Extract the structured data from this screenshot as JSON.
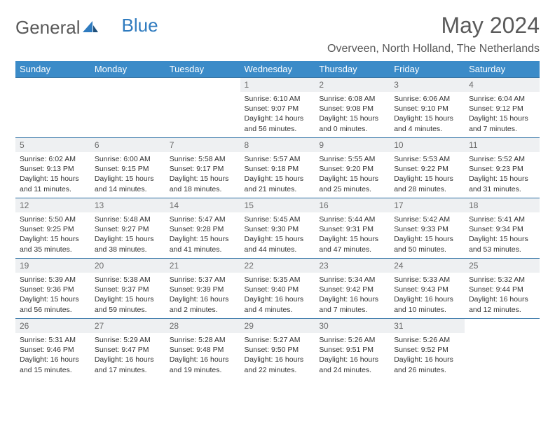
{
  "logo": {
    "text1": "General",
    "text2": "Blue"
  },
  "title": "May 2024",
  "location": "Overveen, North Holland, The Netherlands",
  "colors": {
    "header_bg": "#3b8bc8",
    "header_text": "#ffffff",
    "daynum_bg": "#eef0f2",
    "row_border": "#2d6fa3",
    "text": "#333333",
    "muted": "#5a5a5a",
    "logo_blue": "#2f7bbf"
  },
  "weekdays": [
    "Sunday",
    "Monday",
    "Tuesday",
    "Wednesday",
    "Thursday",
    "Friday",
    "Saturday"
  ],
  "weeks": [
    [
      null,
      null,
      null,
      {
        "n": "1",
        "sr": "Sunrise: 6:10 AM",
        "ss": "Sunset: 9:07 PM",
        "dl": "Daylight: 14 hours and 56 minutes."
      },
      {
        "n": "2",
        "sr": "Sunrise: 6:08 AM",
        "ss": "Sunset: 9:08 PM",
        "dl": "Daylight: 15 hours and 0 minutes."
      },
      {
        "n": "3",
        "sr": "Sunrise: 6:06 AM",
        "ss": "Sunset: 9:10 PM",
        "dl": "Daylight: 15 hours and 4 minutes."
      },
      {
        "n": "4",
        "sr": "Sunrise: 6:04 AM",
        "ss": "Sunset: 9:12 PM",
        "dl": "Daylight: 15 hours and 7 minutes."
      }
    ],
    [
      {
        "n": "5",
        "sr": "Sunrise: 6:02 AM",
        "ss": "Sunset: 9:13 PM",
        "dl": "Daylight: 15 hours and 11 minutes."
      },
      {
        "n": "6",
        "sr": "Sunrise: 6:00 AM",
        "ss": "Sunset: 9:15 PM",
        "dl": "Daylight: 15 hours and 14 minutes."
      },
      {
        "n": "7",
        "sr": "Sunrise: 5:58 AM",
        "ss": "Sunset: 9:17 PM",
        "dl": "Daylight: 15 hours and 18 minutes."
      },
      {
        "n": "8",
        "sr": "Sunrise: 5:57 AM",
        "ss": "Sunset: 9:18 PM",
        "dl": "Daylight: 15 hours and 21 minutes."
      },
      {
        "n": "9",
        "sr": "Sunrise: 5:55 AM",
        "ss": "Sunset: 9:20 PM",
        "dl": "Daylight: 15 hours and 25 minutes."
      },
      {
        "n": "10",
        "sr": "Sunrise: 5:53 AM",
        "ss": "Sunset: 9:22 PM",
        "dl": "Daylight: 15 hours and 28 minutes."
      },
      {
        "n": "11",
        "sr": "Sunrise: 5:52 AM",
        "ss": "Sunset: 9:23 PM",
        "dl": "Daylight: 15 hours and 31 minutes."
      }
    ],
    [
      {
        "n": "12",
        "sr": "Sunrise: 5:50 AM",
        "ss": "Sunset: 9:25 PM",
        "dl": "Daylight: 15 hours and 35 minutes."
      },
      {
        "n": "13",
        "sr": "Sunrise: 5:48 AM",
        "ss": "Sunset: 9:27 PM",
        "dl": "Daylight: 15 hours and 38 minutes."
      },
      {
        "n": "14",
        "sr": "Sunrise: 5:47 AM",
        "ss": "Sunset: 9:28 PM",
        "dl": "Daylight: 15 hours and 41 minutes."
      },
      {
        "n": "15",
        "sr": "Sunrise: 5:45 AM",
        "ss": "Sunset: 9:30 PM",
        "dl": "Daylight: 15 hours and 44 minutes."
      },
      {
        "n": "16",
        "sr": "Sunrise: 5:44 AM",
        "ss": "Sunset: 9:31 PM",
        "dl": "Daylight: 15 hours and 47 minutes."
      },
      {
        "n": "17",
        "sr": "Sunrise: 5:42 AM",
        "ss": "Sunset: 9:33 PM",
        "dl": "Daylight: 15 hours and 50 minutes."
      },
      {
        "n": "18",
        "sr": "Sunrise: 5:41 AM",
        "ss": "Sunset: 9:34 PM",
        "dl": "Daylight: 15 hours and 53 minutes."
      }
    ],
    [
      {
        "n": "19",
        "sr": "Sunrise: 5:39 AM",
        "ss": "Sunset: 9:36 PM",
        "dl": "Daylight: 15 hours and 56 minutes."
      },
      {
        "n": "20",
        "sr": "Sunrise: 5:38 AM",
        "ss": "Sunset: 9:37 PM",
        "dl": "Daylight: 15 hours and 59 minutes."
      },
      {
        "n": "21",
        "sr": "Sunrise: 5:37 AM",
        "ss": "Sunset: 9:39 PM",
        "dl": "Daylight: 16 hours and 2 minutes."
      },
      {
        "n": "22",
        "sr": "Sunrise: 5:35 AM",
        "ss": "Sunset: 9:40 PM",
        "dl": "Daylight: 16 hours and 4 minutes."
      },
      {
        "n": "23",
        "sr": "Sunrise: 5:34 AM",
        "ss": "Sunset: 9:42 PM",
        "dl": "Daylight: 16 hours and 7 minutes."
      },
      {
        "n": "24",
        "sr": "Sunrise: 5:33 AM",
        "ss": "Sunset: 9:43 PM",
        "dl": "Daylight: 16 hours and 10 minutes."
      },
      {
        "n": "25",
        "sr": "Sunrise: 5:32 AM",
        "ss": "Sunset: 9:44 PM",
        "dl": "Daylight: 16 hours and 12 minutes."
      }
    ],
    [
      {
        "n": "26",
        "sr": "Sunrise: 5:31 AM",
        "ss": "Sunset: 9:46 PM",
        "dl": "Daylight: 16 hours and 15 minutes."
      },
      {
        "n": "27",
        "sr": "Sunrise: 5:29 AM",
        "ss": "Sunset: 9:47 PM",
        "dl": "Daylight: 16 hours and 17 minutes."
      },
      {
        "n": "28",
        "sr": "Sunrise: 5:28 AM",
        "ss": "Sunset: 9:48 PM",
        "dl": "Daylight: 16 hours and 19 minutes."
      },
      {
        "n": "29",
        "sr": "Sunrise: 5:27 AM",
        "ss": "Sunset: 9:50 PM",
        "dl": "Daylight: 16 hours and 22 minutes."
      },
      {
        "n": "30",
        "sr": "Sunrise: 5:26 AM",
        "ss": "Sunset: 9:51 PM",
        "dl": "Daylight: 16 hours and 24 minutes."
      },
      {
        "n": "31",
        "sr": "Sunrise: 5:26 AM",
        "ss": "Sunset: 9:52 PM",
        "dl": "Daylight: 16 hours and 26 minutes."
      },
      null
    ]
  ]
}
